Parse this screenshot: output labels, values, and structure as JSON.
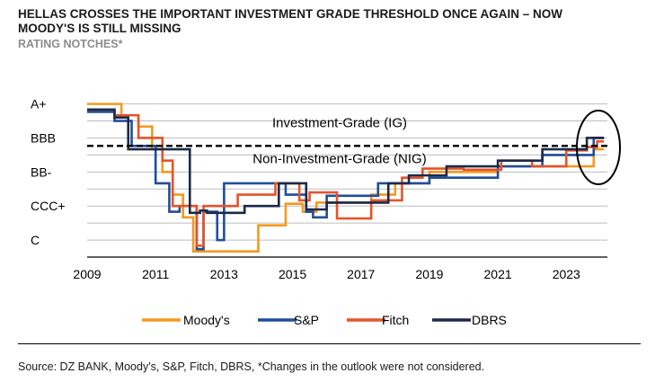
{
  "header": {
    "title_line1": "HELLAS CROSSES THE IMPORTANT INVESTMENT GRADE THRESHOLD ONCE AGAIN – NOW",
    "title_line2": "MOODY'S IS STILL MISSING",
    "subtitle": "RATING NOTCHES*"
  },
  "footer": {
    "source": "Source: DZ BANK, Moody's, S&P, Fitch, DBRS, *Changes in the outlook were not considered."
  },
  "chart_data": {
    "type": "line",
    "step": true,
    "title": "HELLAS CROSSES THE IMPORTANT INVESTMENT GRADE THRESHOLD ONCE AGAIN – NOW MOODY'S IS STILL MISSING",
    "subtitle": "RATING NOTCHES*",
    "y_scale_note": "notch index: 19 = A+, 16 = BBB, 13 = BB-, 10 = CCC+, 7 = C",
    "ylim": [
      5.5,
      20
    ],
    "xlim": [
      2009,
      2024.2
    ],
    "x_ticks": [
      "2009",
      "2011",
      "2013",
      "2015",
      "2017",
      "2019",
      "2021",
      "2023"
    ],
    "y_ticks": [
      {
        "label": "A+",
        "value": 19
      },
      {
        "label": "BBB",
        "value": 16
      },
      {
        "label": "BB-",
        "value": 13
      },
      {
        "label": "CCC+",
        "value": 10
      },
      {
        "label": "C",
        "value": 7
      }
    ],
    "grid": true,
    "threshold": 15.3,
    "annotations": {
      "above": "Investment-Grade (IG)",
      "below": "Non-Investment-Grade (NIG)"
    },
    "legend_position": "bottom",
    "series": [
      {
        "name": "Moody's",
        "color": "#F39A1E",
        "points": [
          [
            2009,
            19
          ],
          [
            2010.0,
            18
          ],
          [
            2010.5,
            17
          ],
          [
            2010.9,
            15
          ],
          [
            2011.2,
            13
          ],
          [
            2011.5,
            11
          ],
          [
            2011.8,
            9
          ],
          [
            2012.1,
            6
          ],
          [
            2014.0,
            8.3
          ],
          [
            2014.8,
            10.2
          ],
          [
            2015.3,
            9.5
          ],
          [
            2015.7,
            10.3
          ],
          [
            2017.3,
            11.0
          ],
          [
            2018.0,
            12.0
          ],
          [
            2019.0,
            13.0
          ],
          [
            2020.1,
            13.0
          ],
          [
            2021.0,
            13.5
          ],
          [
            2023.8,
            15.0
          ],
          [
            2024.0,
            15.0
          ]
        ]
      },
      {
        "name": "S&P",
        "color": "#1F4E99",
        "points": [
          [
            2009,
            18.3
          ],
          [
            2009.8,
            17.5
          ],
          [
            2010.3,
            15.3
          ],
          [
            2011.0,
            12.0
          ],
          [
            2011.4,
            9.5
          ],
          [
            2011.7,
            10.0
          ],
          [
            2012.2,
            6.2
          ],
          [
            2012.4,
            9.5
          ],
          [
            2012.8,
            7.0
          ],
          [
            2013.0,
            12.0
          ],
          [
            2014.8,
            11.0
          ],
          [
            2015.4,
            9.5
          ],
          [
            2015.6,
            9.0
          ],
          [
            2016.0,
            10.9
          ],
          [
            2017.5,
            12.0
          ],
          [
            2019.0,
            12.5
          ],
          [
            2021.0,
            13.5
          ],
          [
            2022.3,
            14.5
          ],
          [
            2023.8,
            16.0
          ],
          [
            2024.0,
            16.0
          ]
        ]
      },
      {
        "name": "Fitch",
        "color": "#E5532B",
        "points": [
          [
            2009,
            18.5
          ],
          [
            2009.8,
            18.0
          ],
          [
            2010.5,
            16.0
          ],
          [
            2011.2,
            14.0
          ],
          [
            2011.5,
            10.0
          ],
          [
            2012.2,
            6.5
          ],
          [
            2012.4,
            10.0
          ],
          [
            2012.8,
            10.0
          ],
          [
            2013.4,
            11.0
          ],
          [
            2014.5,
            12.0
          ],
          [
            2015.2,
            10.5
          ],
          [
            2015.5,
            11.2
          ],
          [
            2016.3,
            8.9
          ],
          [
            2017.3,
            10.5
          ],
          [
            2018.2,
            12.5
          ],
          [
            2018.8,
            13.3
          ],
          [
            2020.0,
            13.2
          ],
          [
            2021.1,
            14.0
          ],
          [
            2022.0,
            13.5
          ],
          [
            2023.0,
            14.9
          ],
          [
            2023.6,
            15.2
          ],
          [
            2023.9,
            15.7
          ],
          [
            2024.0,
            15.7
          ]
        ]
      },
      {
        "name": "DBRS",
        "color": "#1B2A4A",
        "points": [
          [
            2009,
            18.5
          ],
          [
            2009.8,
            17.8
          ],
          [
            2010.2,
            15.0
          ],
          [
            2011.0,
            15.0
          ],
          [
            2012.0,
            9.4
          ],
          [
            2012.3,
            9.6
          ],
          [
            2012.5,
            9.4
          ],
          [
            2013.6,
            10.0
          ],
          [
            2014.6,
            12.0
          ],
          [
            2015.4,
            9.7
          ],
          [
            2016.0,
            10.3
          ],
          [
            2017.8,
            12.0
          ],
          [
            2018.4,
            12.7
          ],
          [
            2019.5,
            13.5
          ],
          [
            2021.0,
            14.0
          ],
          [
            2022.3,
            15.0
          ],
          [
            2023.6,
            16.0
          ],
          [
            2024.0,
            16.0
          ]
        ]
      }
    ]
  }
}
